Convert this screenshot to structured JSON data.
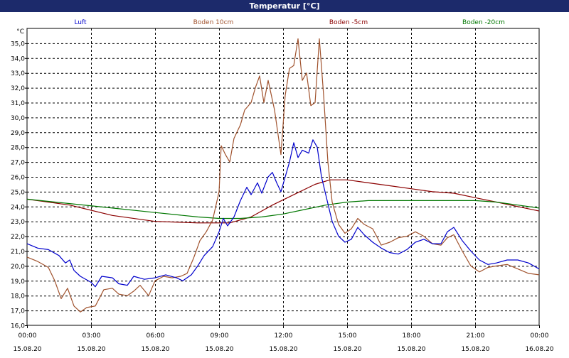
{
  "window": {
    "title": "Temperatur [°C]"
  },
  "chart_data": {
    "type": "line",
    "title": "Temperatur [°C]",
    "ylabel": "°C",
    "ylim": [
      16,
      36
    ],
    "yticks": [
      "16,0",
      "17,0",
      "18,0",
      "19,0",
      "20,0",
      "21,0",
      "22,0",
      "23,0",
      "24,0",
      "25,0",
      "26,0",
      "27,0",
      "28,0",
      "29,0",
      "30,0",
      "31,0",
      "32,0",
      "33,0",
      "34,0",
      "35,0"
    ],
    "xticks": [
      {
        "time": "00:00",
        "date": "15.08.20"
      },
      {
        "time": "03:00",
        "date": "15.08.20"
      },
      {
        "time": "06:00",
        "date": "15.08.20"
      },
      {
        "time": "09:00",
        "date": "15.08.20"
      },
      {
        "time": "12:00",
        "date": "15.08.20"
      },
      {
        "time": "15:00",
        "date": "15.08.20"
      },
      {
        "time": "18:00",
        "date": "15.08.20"
      },
      {
        "time": "21:00",
        "date": "15.08.20"
      },
      {
        "time": "00:00",
        "date": "16.08.20"
      }
    ],
    "x_unit": "hours since 15.08.20 00:00",
    "grid": true,
    "legend_placement": "top",
    "series": [
      {
        "name": "Luft",
        "color": "#0000cc",
        "points": [
          [
            0,
            21.5
          ],
          [
            0.5,
            21.2
          ],
          [
            1.0,
            21.1
          ],
          [
            1.5,
            20.7
          ],
          [
            1.8,
            20.2
          ],
          [
            2.0,
            20.4
          ],
          [
            2.2,
            19.7
          ],
          [
            2.5,
            19.3
          ],
          [
            3.0,
            18.9
          ],
          [
            3.2,
            18.6
          ],
          [
            3.5,
            19.3
          ],
          [
            4.0,
            19.2
          ],
          [
            4.3,
            18.8
          ],
          [
            4.7,
            18.7
          ],
          [
            5.0,
            19.3
          ],
          [
            5.5,
            19.1
          ],
          [
            6.0,
            19.2
          ],
          [
            6.5,
            19.4
          ],
          [
            7.0,
            19.2
          ],
          [
            7.3,
            19.0
          ],
          [
            7.7,
            19.4
          ],
          [
            8.0,
            20.0
          ],
          [
            8.3,
            20.7
          ],
          [
            8.7,
            21.3
          ],
          [
            9.0,
            22.3
          ],
          [
            9.2,
            23.2
          ],
          [
            9.4,
            22.7
          ],
          [
            9.7,
            23.3
          ],
          [
            10.0,
            24.4
          ],
          [
            10.3,
            25.3
          ],
          [
            10.5,
            24.8
          ],
          [
            10.8,
            25.6
          ],
          [
            11.0,
            24.9
          ],
          [
            11.3,
            26.0
          ],
          [
            11.5,
            26.3
          ],
          [
            11.7,
            25.6
          ],
          [
            11.9,
            25.0
          ],
          [
            12.1,
            26.0
          ],
          [
            12.3,
            27.0
          ],
          [
            12.5,
            28.3
          ],
          [
            12.7,
            27.3
          ],
          [
            12.9,
            27.8
          ],
          [
            13.2,
            27.6
          ],
          [
            13.4,
            28.5
          ],
          [
            13.6,
            28.0
          ],
          [
            13.8,
            26.0
          ],
          [
            14.0,
            24.8
          ],
          [
            14.3,
            23.0
          ],
          [
            14.6,
            22.0
          ],
          [
            14.9,
            21.6
          ],
          [
            15.2,
            21.8
          ],
          [
            15.5,
            22.6
          ],
          [
            15.8,
            22.1
          ],
          [
            16.2,
            21.6
          ],
          [
            16.6,
            21.2
          ],
          [
            17.0,
            20.9
          ],
          [
            17.4,
            20.8
          ],
          [
            17.8,
            21.1
          ],
          [
            18.2,
            21.6
          ],
          [
            18.6,
            21.8
          ],
          [
            19.0,
            21.5
          ],
          [
            19.4,
            21.5
          ],
          [
            19.7,
            22.3
          ],
          [
            20.0,
            22.6
          ],
          [
            20.4,
            21.7
          ],
          [
            20.8,
            21.0
          ],
          [
            21.2,
            20.4
          ],
          [
            21.6,
            20.1
          ],
          [
            22.0,
            20.2
          ],
          [
            22.5,
            20.4
          ],
          [
            23.0,
            20.4
          ],
          [
            23.5,
            20.2
          ],
          [
            24.0,
            19.8
          ]
        ]
      },
      {
        "name": "Boden 10cm",
        "color": "#a0522d",
        "points": [
          [
            0,
            20.6
          ],
          [
            0.5,
            20.3
          ],
          [
            1.0,
            19.9
          ],
          [
            1.3,
            19.0
          ],
          [
            1.6,
            17.8
          ],
          [
            1.9,
            18.5
          ],
          [
            2.2,
            17.3
          ],
          [
            2.5,
            16.9
          ],
          [
            2.8,
            17.2
          ],
          [
            3.2,
            17.3
          ],
          [
            3.6,
            18.4
          ],
          [
            4.0,
            18.5
          ],
          [
            4.3,
            18.1
          ],
          [
            4.7,
            18.0
          ],
          [
            5.0,
            18.3
          ],
          [
            5.3,
            18.7
          ],
          [
            5.7,
            18.0
          ],
          [
            6.0,
            19.0
          ],
          [
            6.4,
            19.3
          ],
          [
            6.8,
            19.2
          ],
          [
            7.2,
            19.3
          ],
          [
            7.5,
            19.5
          ],
          [
            7.8,
            20.5
          ],
          [
            8.1,
            21.7
          ],
          [
            8.4,
            22.3
          ],
          [
            8.7,
            23.1
          ],
          [
            9.0,
            25.0
          ],
          [
            9.1,
            28.1
          ],
          [
            9.3,
            27.5
          ],
          [
            9.5,
            27.0
          ],
          [
            9.7,
            28.6
          ],
          [
            10.0,
            29.5
          ],
          [
            10.2,
            30.5
          ],
          [
            10.5,
            31.0
          ],
          [
            10.7,
            32.0
          ],
          [
            10.9,
            32.8
          ],
          [
            11.1,
            31.0
          ],
          [
            11.3,
            32.5
          ],
          [
            11.6,
            30.5
          ],
          [
            11.9,
            27.5
          ],
          [
            12.1,
            31.5
          ],
          [
            12.3,
            33.3
          ],
          [
            12.5,
            33.5
          ],
          [
            12.7,
            35.3
          ],
          [
            12.9,
            32.5
          ],
          [
            13.1,
            33.0
          ],
          [
            13.3,
            30.8
          ],
          [
            13.5,
            31.0
          ],
          [
            13.7,
            35.3
          ],
          [
            13.9,
            31.5
          ],
          [
            14.1,
            27.0
          ],
          [
            14.3,
            24.3
          ],
          [
            14.6,
            22.8
          ],
          [
            14.9,
            22.2
          ],
          [
            15.2,
            22.5
          ],
          [
            15.5,
            23.2
          ],
          [
            15.8,
            22.8
          ],
          [
            16.2,
            22.5
          ],
          [
            16.6,
            21.4
          ],
          [
            17.0,
            21.6
          ],
          [
            17.4,
            21.9
          ],
          [
            17.8,
            22.0
          ],
          [
            18.2,
            22.3
          ],
          [
            18.6,
            22.0
          ],
          [
            19.0,
            21.5
          ],
          [
            19.4,
            21.4
          ],
          [
            19.7,
            21.9
          ],
          [
            20.0,
            22.1
          ],
          [
            20.4,
            21.0
          ],
          [
            20.8,
            20.0
          ],
          [
            21.2,
            19.6
          ],
          [
            21.6,
            19.9
          ],
          [
            22.0,
            20.0
          ],
          [
            22.5,
            20.1
          ],
          [
            23.0,
            19.8
          ],
          [
            23.5,
            19.5
          ],
          [
            24.0,
            19.4
          ]
        ]
      },
      {
        "name": "Boden -5cm",
        "color": "#8b0000",
        "points": [
          [
            0,
            24.5
          ],
          [
            2,
            24.1
          ],
          [
            4,
            23.4
          ],
          [
            6,
            23.0
          ],
          [
            8,
            22.9
          ],
          [
            9.5,
            22.9
          ],
          [
            10.5,
            23.3
          ],
          [
            11.5,
            24.1
          ],
          [
            12.5,
            24.8
          ],
          [
            13.5,
            25.5
          ],
          [
            14.2,
            25.8
          ],
          [
            15.0,
            25.8
          ],
          [
            16.0,
            25.6
          ],
          [
            17.0,
            25.4
          ],
          [
            18.0,
            25.2
          ],
          [
            19.0,
            25.0
          ],
          [
            20.0,
            24.9
          ],
          [
            21.0,
            24.6
          ],
          [
            22.0,
            24.3
          ],
          [
            23.0,
            24.0
          ],
          [
            24.0,
            23.7
          ]
        ]
      },
      {
        "name": "Boden -20cm",
        "color": "#007700",
        "points": [
          [
            0,
            24.5
          ],
          [
            2,
            24.2
          ],
          [
            4,
            23.9
          ],
          [
            6,
            23.6
          ],
          [
            8,
            23.3
          ],
          [
            9.0,
            23.2
          ],
          [
            10.0,
            23.2
          ],
          [
            11.0,
            23.3
          ],
          [
            12.0,
            23.5
          ],
          [
            13.0,
            23.8
          ],
          [
            14.0,
            24.1
          ],
          [
            15.0,
            24.3
          ],
          [
            16.0,
            24.4
          ],
          [
            17.0,
            24.4
          ],
          [
            18.0,
            24.4
          ],
          [
            19.0,
            24.4
          ],
          [
            20.0,
            24.4
          ],
          [
            21.0,
            24.4
          ],
          [
            22.0,
            24.3
          ],
          [
            23.0,
            24.1
          ],
          [
            24.0,
            23.9
          ]
        ]
      }
    ]
  }
}
